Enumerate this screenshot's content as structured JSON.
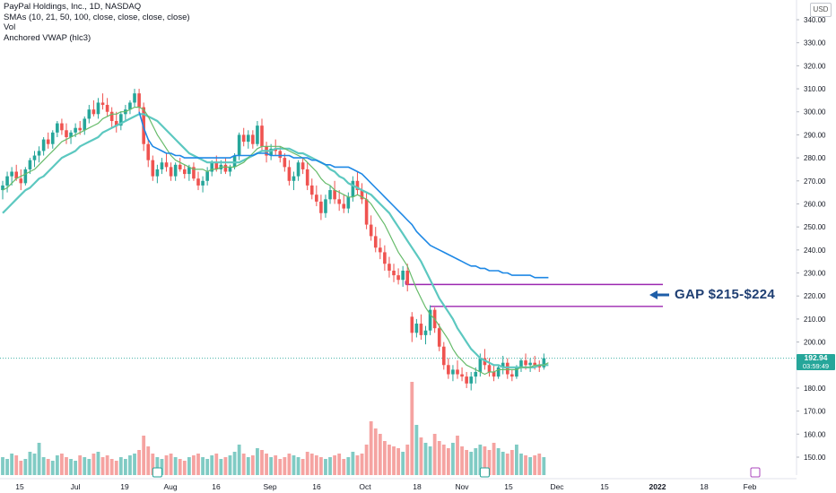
{
  "header": {
    "symbol_line": "PayPal Holdings, Inc., 1D, NASDAQ",
    "sma_line": "SMAs (10, 21, 50, 100, close, close, close, close)",
    "vol_line": "Vol",
    "vwap_line": "Anchored VWAP (hlc3)"
  },
  "currency": "USD",
  "last_price": "192.94",
  "countdown": "03:59:49",
  "gap_annotation": "GAP $215-$224",
  "colors": {
    "up": "#26a69a",
    "down": "#ef5350",
    "vol_up": "#80cbc4",
    "vol_down": "#f5a3a1",
    "sma10": "#66bb6a",
    "sma21": "#5cc8c0",
    "sma50": "#1e88e5",
    "gap_lines": "#9c27b0",
    "arrow": "#1e5ea8",
    "event_marker": "#ab47bc"
  },
  "chart_data": {
    "type": "candlestick",
    "y_axis": {
      "ticks": [
        150,
        160,
        170,
        180,
        190,
        200,
        210,
        220,
        230,
        240,
        250,
        260,
        270,
        280,
        290,
        300,
        310,
        320,
        330,
        340
      ],
      "tick_labels": [
        "150.00",
        "160.00",
        "170.00",
        "180.00",
        "190.00",
        "200.00",
        "210.00",
        "220.00",
        "230.00",
        "240.00",
        "250.00",
        "260.00",
        "270.00",
        "280.00",
        "290.00",
        "300.00",
        "310.00",
        "320.00",
        "330.00",
        "340.00"
      ],
      "range": [
        144,
        344
      ]
    },
    "x_axis": {
      "tick_labels": [
        "15",
        "Jul",
        "19",
        "Aug",
        "16",
        "Sep",
        "16",
        "Oct",
        "18",
        "Nov",
        "15",
        "Dec",
        "15",
        "2022",
        "18",
        "Feb"
      ],
      "tick_index": [
        0,
        15,
        29,
        36,
        46,
        58,
        67,
        80,
        91,
        102,
        112,
        124,
        133,
        144,
        155,
        165
      ],
      "last_index": 144,
      "total_slots": 179
    },
    "candles_ohlc": [
      [
        266,
        270,
        262,
        268
      ],
      [
        268,
        274,
        265,
        272
      ],
      [
        272,
        276,
        268,
        274
      ],
      [
        274,
        277,
        270,
        271
      ],
      [
        271,
        275,
        266,
        269
      ],
      [
        269,
        276,
        268,
        275
      ],
      [
        275,
        280,
        273,
        279
      ],
      [
        279,
        283,
        276,
        281
      ],
      [
        281,
        285,
        278,
        283
      ],
      [
        283,
        289,
        281,
        288
      ],
      [
        288,
        291,
        284,
        286
      ],
      [
        286,
        292,
        284,
        291
      ],
      [
        291,
        296,
        289,
        295
      ],
      [
        295,
        297,
        290,
        292
      ],
      [
        292,
        295,
        286,
        289
      ],
      [
        289,
        292,
        286,
        291
      ],
      [
        291,
        295,
        289,
        293
      ],
      [
        293,
        296,
        290,
        292
      ],
      [
        292,
        298,
        290,
        297
      ],
      [
        297,
        303,
        295,
        301
      ],
      [
        301,
        305,
        298,
        299
      ],
      [
        299,
        306,
        297,
        304
      ],
      [
        304,
        308,
        301,
        303
      ],
      [
        303,
        306,
        298,
        300
      ],
      [
        300,
        302,
        293,
        296
      ],
      [
        296,
        300,
        291,
        294
      ],
      [
        294,
        300,
        292,
        299
      ],
      [
        299,
        303,
        296,
        301
      ],
      [
        301,
        305,
        299,
        304
      ],
      [
        304,
        310,
        302,
        308
      ],
      [
        308,
        310,
        300,
        302
      ],
      [
        302,
        304,
        283,
        286
      ],
      [
        286,
        288,
        276,
        279
      ],
      [
        279,
        281,
        270,
        272
      ],
      [
        272,
        277,
        269,
        275
      ],
      [
        275,
        280,
        273,
        278
      ],
      [
        278,
        282,
        274,
        276
      ],
      [
        276,
        278,
        270,
        272
      ],
      [
        272,
        278,
        270,
        277
      ],
      [
        277,
        280,
        274,
        275
      ],
      [
        275,
        277,
        271,
        273
      ],
      [
        273,
        277,
        270,
        276
      ],
      [
        276,
        278,
        270,
        271
      ],
      [
        271,
        274,
        266,
        268
      ],
      [
        268,
        272,
        265,
        270
      ],
      [
        270,
        276,
        268,
        274
      ],
      [
        274,
        279,
        272,
        278
      ],
      [
        278,
        281,
        274,
        275
      ],
      [
        275,
        279,
        273,
        277
      ],
      [
        277,
        280,
        273,
        274
      ],
      [
        274,
        277,
        272,
        276
      ],
      [
        276,
        282,
        275,
        281
      ],
      [
        281,
        291,
        279,
        290
      ],
      [
        290,
        293,
        285,
        287
      ],
      [
        287,
        292,
        284,
        290
      ],
      [
        290,
        292,
        284,
        286
      ],
      [
        286,
        296,
        285,
        294
      ],
      [
        294,
        297,
        283,
        285
      ],
      [
        285,
        287,
        278,
        281
      ],
      [
        281,
        286,
        279,
        284
      ],
      [
        284,
        288,
        281,
        283
      ],
      [
        283,
        285,
        278,
        280
      ],
      [
        280,
        282,
        274,
        276
      ],
      [
        276,
        279,
        268,
        270
      ],
      [
        270,
        274,
        266,
        272
      ],
      [
        272,
        279,
        270,
        278
      ],
      [
        278,
        280,
        273,
        275
      ],
      [
        275,
        278,
        266,
        268
      ],
      [
        268,
        271,
        262,
        264
      ],
      [
        264,
        268,
        259,
        261
      ],
      [
        261,
        264,
        253,
        256
      ],
      [
        256,
        264,
        254,
        262
      ],
      [
        262,
        268,
        260,
        266
      ],
      [
        266,
        270,
        260,
        262
      ],
      [
        262,
        266,
        257,
        260
      ],
      [
        260,
        264,
        256,
        258
      ],
      [
        258,
        265,
        256,
        263
      ],
      [
        263,
        272,
        261,
        270
      ],
      [
        270,
        274,
        264,
        266
      ],
      [
        266,
        269,
        260,
        262
      ],
      [
        262,
        265,
        249,
        251
      ],
      [
        251,
        255,
        244,
        246
      ],
      [
        246,
        250,
        239,
        241
      ],
      [
        241,
        245,
        236,
        239
      ],
      [
        239,
        242,
        231,
        234
      ],
      [
        234,
        237,
        228,
        231
      ],
      [
        231,
        234,
        226,
        229
      ],
      [
        229,
        232,
        225,
        227
      ],
      [
        227,
        233,
        224,
        231
      ],
      [
        231,
        234,
        222,
        225
      ],
      [
        211,
        213,
        200,
        204
      ],
      [
        204,
        210,
        202,
        208
      ],
      [
        208,
        212,
        201,
        203
      ],
      [
        203,
        207,
        199,
        205
      ],
      [
        205,
        216,
        203,
        214
      ],
      [
        214,
        215,
        204,
        206
      ],
      [
        206,
        208,
        196,
        198
      ],
      [
        198,
        200,
        188,
        190
      ],
      [
        190,
        193,
        184,
        186
      ],
      [
        186,
        190,
        183,
        188
      ],
      [
        188,
        192,
        184,
        186
      ],
      [
        186,
        189,
        183,
        185
      ],
      [
        185,
        187,
        180,
        182
      ],
      [
        182,
        187,
        179,
        185
      ],
      [
        185,
        189,
        182,
        187
      ],
      [
        187,
        195,
        185,
        193
      ],
      [
        193,
        197,
        188,
        190
      ],
      [
        190,
        193,
        185,
        187
      ],
      [
        187,
        190,
        183,
        185
      ],
      [
        185,
        190,
        184,
        189
      ],
      [
        189,
        194,
        186,
        191
      ],
      [
        191,
        193,
        184,
        186
      ],
      [
        186,
        188,
        183,
        185
      ],
      [
        185,
        190,
        184,
        189
      ],
      [
        189,
        193,
        187,
        192
      ],
      [
        192,
        195,
        188,
        190
      ],
      [
        190,
        193,
        187,
        191
      ],
      [
        191,
        194,
        188,
        190
      ],
      [
        190,
        192,
        187,
        189
      ],
      [
        189,
        195,
        188,
        193
      ]
    ],
    "candles_start_index": 0,
    "volume_mmshares_note": "relative bar heights",
    "volume": [
      10,
      9,
      12,
      11,
      8,
      9,
      13,
      12,
      18,
      10,
      9,
      8,
      11,
      12,
      10,
      9,
      8,
      11,
      10,
      9,
      12,
      13,
      10,
      11,
      9,
      8,
      10,
      9,
      11,
      12,
      14,
      22,
      16,
      12,
      10,
      9,
      11,
      12,
      10,
      9,
      8,
      10,
      11,
      12,
      10,
      9,
      11,
      12,
      9,
      10,
      11,
      13,
      17,
      12,
      10,
      11,
      15,
      14,
      12,
      10,
      11,
      9,
      10,
      12,
      11,
      10,
      9,
      13,
      12,
      11,
      10,
      9,
      10,
      11,
      12,
      9,
      10,
      13,
      11,
      12,
      17,
      30,
      26,
      23,
      19,
      17,
      16,
      15,
      13,
      17,
      52,
      28,
      21,
      18,
      16,
      23,
      19,
      17,
      15,
      18,
      22,
      16,
      14,
      13,
      15,
      17,
      16,
      14,
      18,
      15,
      13,
      12,
      14,
      17,
      12,
      11,
      10,
      11,
      12,
      10,
      9
    ],
    "sma10": [
      266,
      267,
      269,
      271,
      272,
      273,
      274,
      275,
      277,
      279,
      281,
      283,
      285,
      287,
      288,
      289,
      290,
      291,
      292,
      293,
      294,
      295,
      297,
      298,
      299,
      299,
      300,
      300,
      301,
      302,
      302,
      301,
      298,
      294,
      290,
      287,
      284,
      281,
      279,
      278,
      277,
      276,
      275,
      275,
      275,
      274,
      275,
      275,
      276,
      276,
      276,
      276,
      277,
      278,
      280,
      282,
      284,
      285,
      285,
      285,
      285,
      285,
      284,
      283,
      282,
      281,
      280,
      278,
      276,
      274,
      271,
      269,
      268,
      266,
      265,
      264,
      263,
      263,
      264,
      263,
      262,
      260,
      257,
      254,
      251,
      247,
      243,
      239,
      236,
      233,
      228,
      223,
      219,
      215,
      212,
      210,
      207,
      204,
      201,
      197,
      194,
      192,
      190,
      189,
      188,
      187,
      186,
      187,
      187,
      188,
      188,
      188,
      188,
      188,
      189,
      189,
      189,
      190,
      190,
      190,
      191
    ],
    "sma21": [
      256,
      258,
      260,
      262,
      264,
      266,
      267,
      269,
      271,
      272,
      274,
      276,
      278,
      280,
      281,
      282,
      283,
      285,
      286,
      287,
      288,
      289,
      291,
      292,
      293,
      294,
      295,
      296,
      297,
      298,
      299,
      299,
      298,
      297,
      296,
      294,
      292,
      290,
      288,
      286,
      284,
      282,
      281,
      280,
      279,
      278,
      278,
      278,
      278,
      278,
      278,
      278,
      278,
      279,
      280,
      281,
      282,
      283,
      283,
      283,
      284,
      284,
      284,
      284,
      283,
      282,
      282,
      281,
      280,
      279,
      278,
      277,
      275,
      274,
      272,
      271,
      269,
      268,
      267,
      266,
      265,
      264,
      262,
      260,
      258,
      256,
      253,
      250,
      247,
      244,
      241,
      238,
      235,
      231,
      227,
      223,
      219,
      216,
      213,
      210,
      206,
      203,
      200,
      197,
      195,
      193,
      192,
      191,
      190,
      190,
      189,
      189,
      189,
      189,
      189,
      189,
      189,
      189,
      190,
      190,
      190
    ],
    "sma50": [
      null,
      null,
      null,
      null,
      null,
      null,
      null,
      null,
      null,
      null,
      null,
      null,
      null,
      null,
      null,
      null,
      null,
      null,
      null,
      null,
      null,
      null,
      null,
      null,
      null,
      null,
      null,
      null,
      null,
      null,
      300,
      293,
      288,
      285,
      284,
      283,
      282,
      282,
      281,
      281,
      280,
      280,
      280,
      280,
      280,
      280,
      280,
      280,
      280,
      280,
      280,
      281,
      281,
      281,
      281,
      281,
      282,
      282,
      282,
      281,
      281,
      281,
      281,
      281,
      280,
      280,
      280,
      280,
      279,
      279,
      278,
      277,
      277,
      276,
      276,
      276,
      276,
      275,
      274,
      273,
      271,
      269,
      267,
      265,
      263,
      261,
      259,
      257,
      255,
      253,
      251,
      248,
      246,
      244,
      242,
      241,
      240,
      239,
      238,
      237,
      236,
      235,
      234,
      233,
      233,
      232,
      232,
      231,
      231,
      231,
      230,
      230,
      229,
      229,
      229,
      229,
      229,
      228,
      228,
      228,
      228
    ],
    "gap_levels": [
      215,
      224
    ],
    "last_price": 192.94
  }
}
